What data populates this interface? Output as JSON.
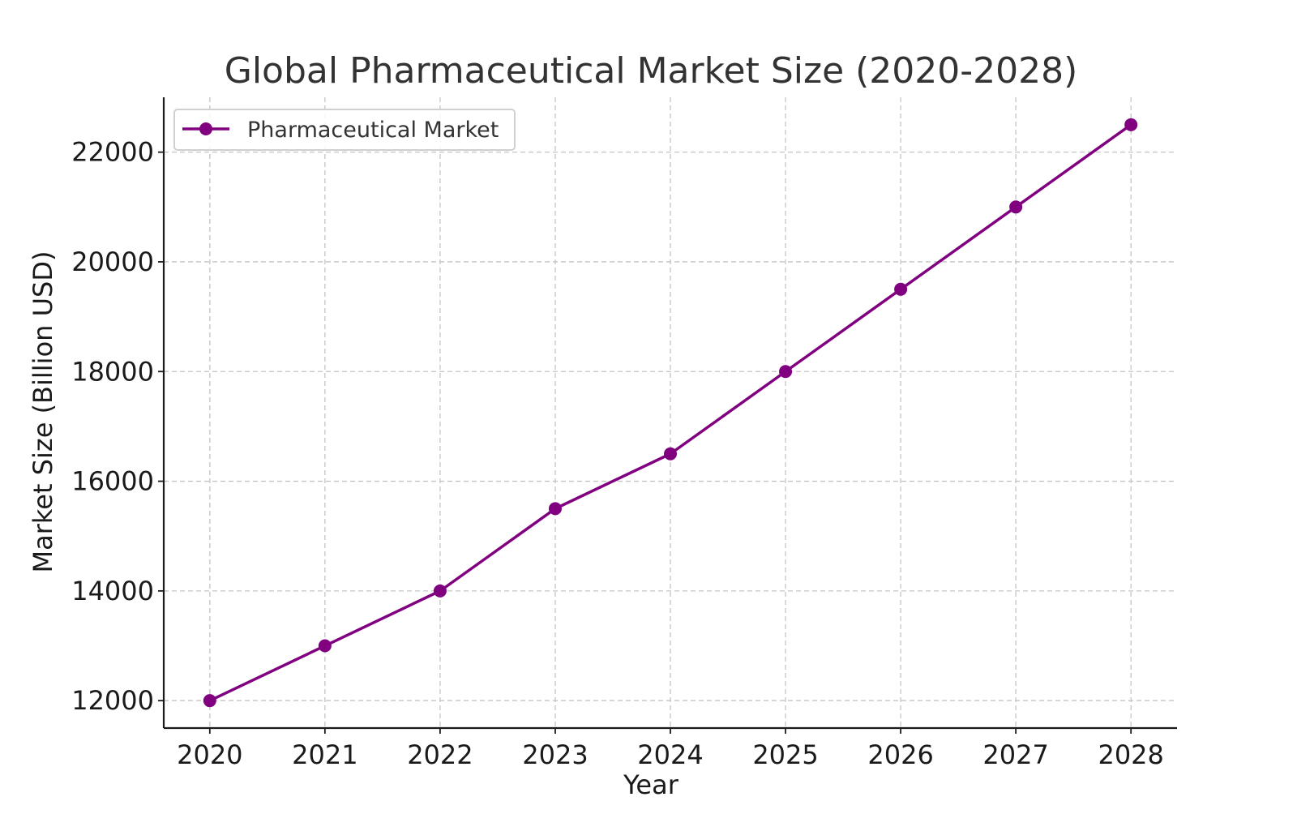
{
  "colors": {
    "series": "#800080",
    "grid": "#c4c4c4",
    "axis": "#1a1a1a",
    "text": "#333333"
  },
  "chart_data": {
    "type": "line",
    "title": "Global Pharmaceutical Market Size (2020-2028)",
    "xlabel": "Year",
    "ylabel": "Market Size (Billion USD)",
    "x": [
      2020,
      2021,
      2022,
      2023,
      2024,
      2025,
      2026,
      2027,
      2028
    ],
    "x_tick_labels": [
      "2020",
      "2021",
      "2022",
      "2023",
      "2024",
      "2025",
      "2026",
      "2027",
      "2028"
    ],
    "y_ticks": [
      12000,
      14000,
      16000,
      18000,
      20000,
      22000
    ],
    "y_tick_labels": [
      "12000",
      "14000",
      "16000",
      "18000",
      "20000",
      "22000"
    ],
    "xlim": [
      2019.6,
      2028.4
    ],
    "ylim": [
      11500,
      23000
    ],
    "grid": true,
    "legend_position": "top-left",
    "series": [
      {
        "name": "Pharmaceutical Market",
        "color": "#800080",
        "marker": "circle",
        "values": [
          12000,
          13000,
          14000,
          15500,
          16500,
          18000,
          19500,
          21000,
          22500
        ]
      }
    ]
  }
}
